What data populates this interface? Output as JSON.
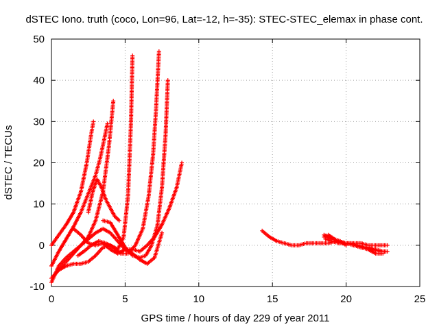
{
  "chart_data": {
    "type": "scatter",
    "title": "dSTEC Iono. truth (coco, Lon=96, Lat=-12, h=-35): STEC-STEC_elemax in phase cont.",
    "xlabel": "GPS time / hours of day 229 of year 2011",
    "ylabel": "dSTEC  / TECUs",
    "xlim": [
      0,
      25
    ],
    "ylim": [
      -10,
      50
    ],
    "xticks": [
      0,
      5,
      10,
      15,
      20,
      25
    ],
    "yticks": [
      -10,
      0,
      10,
      20,
      30,
      40,
      50
    ],
    "grid": true,
    "marker": "plus",
    "color": "#ff0000",
    "series": [
      {
        "x": [
          0.0,
          0.5,
          1.0,
          1.5,
          2.0,
          2.4,
          2.7,
          2.85
        ],
        "y": [
          0,
          2.5,
          5,
          8,
          13,
          20,
          27,
          30
        ]
      },
      {
        "x": [
          0.0,
          0.5,
          1.0,
          1.5,
          2.0,
          2.5,
          3.0,
          3.3,
          3.6,
          3.8
        ],
        "y": [
          -5,
          -1.5,
          1.5,
          4.5,
          8,
          12.5,
          17,
          21,
          26,
          29.5
        ]
      },
      {
        "x": [
          0.0,
          0.5,
          1.0,
          1.5,
          2.0,
          2.5,
          3.0,
          3.5,
          3.9,
          4.2
        ],
        "y": [
          -9,
          -5,
          -3,
          -1.5,
          0,
          2,
          6,
          13,
          24,
          35
        ]
      },
      {
        "x": [
          0.5,
          1.0,
          1.5,
          2.0,
          2.5,
          3.0,
          3.5,
          4.0,
          4.5,
          4.9,
          5.2,
          5.4,
          5.5
        ],
        "y": [
          -6,
          -5,
          -4.5,
          -4.5,
          -4,
          -2.5,
          -0.5,
          0,
          -1,
          2,
          12,
          30,
          46
        ]
      },
      {
        "x": [
          1.8,
          2.2,
          2.7,
          3.2,
          3.7,
          4.2,
          4.7,
          5.2,
          5.7,
          6.2,
          6.6,
          6.9,
          7.1,
          7.3
        ],
        "y": [
          -2.5,
          -1.5,
          0,
          1,
          0.5,
          -0.5,
          -2,
          -2,
          0,
          4,
          12,
          22,
          33,
          47
        ]
      },
      {
        "x": [
          3.5,
          4.0,
          4.5,
          5.0,
          5.5,
          6.0,
          6.4,
          6.8,
          7.2,
          7.5,
          7.75,
          7.9
        ],
        "y": [
          6,
          5.5,
          2.5,
          -0.5,
          -2.5,
          -3,
          -2.5,
          0,
          5,
          14,
          27,
          40
        ]
      },
      {
        "x": [
          0.0,
          0.5,
          1.0,
          1.5,
          2.0,
          2.5,
          3.0,
          3.5,
          4.0,
          4.5,
          5.0,
          5.5,
          6.0,
          6.5,
          7.0,
          7.5
        ],
        "y": [
          -8,
          -6,
          -4,
          -2,
          0,
          1.5,
          3,
          4,
          3,
          1,
          -1,
          -2,
          -3.5,
          -4.5,
          -3,
          3
        ]
      },
      {
        "x": [
          1.5,
          2.0,
          2.5,
          3.0,
          3.5,
          4.0,
          4.5,
          5.0,
          5.5,
          6.0,
          6.5,
          7.0,
          7.5,
          8.0,
          8.5,
          8.85
        ],
        "y": [
          4,
          2.5,
          0.5,
          0,
          0.5,
          -1,
          -2,
          -1,
          -1,
          -1.5,
          0,
          2,
          5,
          9,
          14,
          20
        ]
      },
      {
        "x": [
          2.5,
          2.8,
          3.1,
          3.4,
          3.7,
          4.0,
          4.3,
          4.6
        ],
        "y": [
          8,
          13,
          16,
          14,
          11,
          9,
          7,
          6
        ]
      },
      {
        "x": [
          14.3,
          14.8,
          15.3,
          15.8,
          16.3,
          16.8,
          17.3,
          17.8,
          18.3,
          18.8,
          19.3,
          19.8,
          20.3,
          20.8,
          21.3,
          21.8,
          22.3,
          22.7
        ],
        "y": [
          3.5,
          2,
          1,
          0.5,
          0,
          0,
          0.5,
          0.5,
          0.5,
          0.5,
          1,
          0.5,
          0.5,
          0,
          -0.5,
          -1,
          -1.5,
          -1.5
        ]
      },
      {
        "x": [
          18.5,
          19.0,
          19.5,
          20.0,
          20.5,
          21.0,
          21.5,
          22.0,
          22.5,
          22.8
        ],
        "y": [
          2.5,
          1.5,
          1,
          0.5,
          0,
          -0.5,
          -0.5,
          -1,
          -1.5,
          -1.5
        ]
      },
      {
        "x": [
          18.6,
          19.0,
          19.5,
          20.0,
          20.5,
          21.0,
          21.5,
          22.0,
          22.5,
          22.8
        ],
        "y": [
          1.5,
          1,
          0.5,
          0.5,
          0.5,
          0.5,
          0,
          0,
          0,
          0
        ]
      },
      {
        "x": [
          18.5,
          18.8,
          19.2,
          19.6,
          20.0
        ],
        "y": [
          2,
          2.5,
          1.5,
          1,
          0
        ]
      },
      {
        "x": [
          20.5,
          21.0,
          21.5,
          22.0,
          22.5
        ],
        "y": [
          0,
          -0.5,
          -1,
          -2,
          -2
        ]
      }
    ]
  }
}
